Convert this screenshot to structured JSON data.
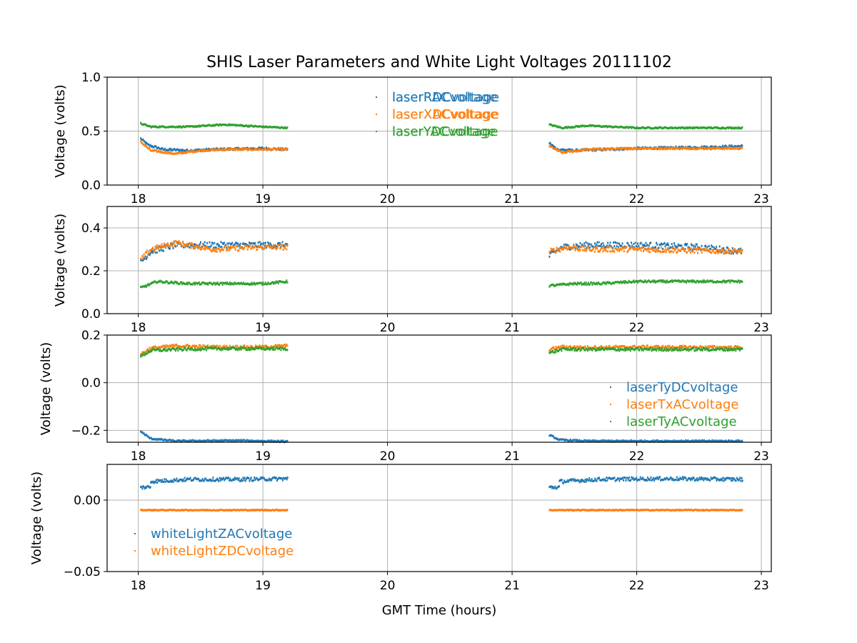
{
  "chart_data": {
    "title": "SHIS Laser Parameters and White Light Voltages 20111102",
    "xlabel": "GMT Time (hours)",
    "xlim": [
      17.75,
      23.08
    ],
    "xticks": [
      18,
      19,
      20,
      21,
      22,
      23
    ],
    "xtick_labels": [
      "18",
      "19",
      "20",
      "21",
      "22",
      "23"
    ],
    "data_segments": [
      [
        18.02,
        19.2
      ],
      [
        21.3,
        22.85
      ]
    ],
    "colors": {
      "blue": "#1f77b4",
      "orange": "#ff7f0e",
      "green": "#2ca02c"
    },
    "panels": [
      {
        "type": "scatter",
        "ylabel": "Voltage (volts)",
        "ylim": [
          0.0,
          1.0
        ],
        "yticks": [
          0.0,
          0.5,
          1.0
        ],
        "ytick_labels": [
          "0.0",
          "0.5",
          "1.0"
        ],
        "legend_position": "upper-center",
        "series": [
          {
            "name": "laserRDCvoltage",
            "color": "#1f77b4",
            "noise": 0.01,
            "segments": [
              [
                [
                  18.02,
                  0.43
                ],
                [
                  18.08,
                  0.37
                ],
                [
                  18.2,
                  0.33
                ],
                [
                  18.4,
                  0.32
                ],
                [
                  18.6,
                  0.33
                ],
                [
                  19.0,
                  0.34
                ],
                [
                  19.2,
                  0.33
                ]
              ],
              [
                [
                  21.3,
                  0.39
                ],
                [
                  21.36,
                  0.33
                ],
                [
                  21.5,
                  0.32
                ],
                [
                  22.0,
                  0.34
                ],
                [
                  22.5,
                  0.35
                ],
                [
                  22.85,
                  0.36
                ]
              ]
            ]
          },
          {
            "name": "laserXDCvoltage",
            "color": "#ff7f0e",
            "noise": 0.008,
            "segments": [
              [
                [
                  18.02,
                  0.4
                ],
                [
                  18.1,
                  0.32
                ],
                [
                  18.3,
                  0.29
                ],
                [
                  18.5,
                  0.32
                ],
                [
                  18.7,
                  0.33
                ],
                [
                  19.2,
                  0.33
                ]
              ],
              [
                [
                  21.3,
                  0.36
                ],
                [
                  21.4,
                  0.3
                ],
                [
                  21.6,
                  0.33
                ],
                [
                  22.0,
                  0.34
                ],
                [
                  22.85,
                  0.34
                ]
              ]
            ]
          },
          {
            "name": "laserYDCvoltage",
            "color": "#2ca02c",
            "noise": 0.006,
            "segments": [
              [
                [
                  18.02,
                  0.57
                ],
                [
                  18.1,
                  0.54
                ],
                [
                  18.4,
                  0.54
                ],
                [
                  18.7,
                  0.56
                ],
                [
                  19.0,
                  0.54
                ],
                [
                  19.2,
                  0.53
                ]
              ],
              [
                [
                  21.3,
                  0.56
                ],
                [
                  21.4,
                  0.53
                ],
                [
                  21.6,
                  0.55
                ],
                [
                  22.0,
                  0.53
                ],
                [
                  22.85,
                  0.53
                ]
              ]
            ]
          }
        ]
      },
      {
        "type": "scatter",
        "ylabel": "Voltage (volts)",
        "ylim": [
          0.0,
          0.5
        ],
        "yticks": [
          0.0,
          0.2,
          0.4
        ],
        "ytick_labels": [
          "0.0",
          "0.2",
          "0.4"
        ],
        "legend_position": "upper-center",
        "series": [
          {
            "name": "laserRACvoltage",
            "color": "#1f77b4",
            "noise": 0.014,
            "segments": [
              [
                [
                  18.02,
                  0.24
                ],
                [
                  18.1,
                  0.29
                ],
                [
                  18.3,
                  0.32
                ],
                [
                  18.6,
                  0.32
                ],
                [
                  19.0,
                  0.32
                ],
                [
                  19.2,
                  0.32
                ]
              ],
              [
                [
                  21.3,
                  0.27
                ],
                [
                  21.4,
                  0.31
                ],
                [
                  21.6,
                  0.32
                ],
                [
                  22.0,
                  0.32
                ],
                [
                  22.5,
                  0.31
                ],
                [
                  22.85,
                  0.29
                ]
              ]
            ]
          },
          {
            "name": "laserXACvoltage",
            "color": "#ff7f0e",
            "noise": 0.012,
            "segments": [
              [
                [
                  18.02,
                  0.25
                ],
                [
                  18.1,
                  0.3
                ],
                [
                  18.3,
                  0.33
                ],
                [
                  18.6,
                  0.3
                ],
                [
                  19.0,
                  0.31
                ],
                [
                  19.2,
                  0.31
                ]
              ],
              [
                [
                  21.3,
                  0.29
                ],
                [
                  21.45,
                  0.31
                ],
                [
                  21.6,
                  0.3
                ],
                [
                  22.0,
                  0.3
                ],
                [
                  22.85,
                  0.29
                ]
              ]
            ]
          },
          {
            "name": "laserYACvoltage",
            "color": "#2ca02c",
            "noise": 0.005,
            "segments": [
              [
                [
                  18.02,
                  0.12
                ],
                [
                  18.15,
                  0.15
                ],
                [
                  18.4,
                  0.14
                ],
                [
                  18.7,
                  0.14
                ],
                [
                  19.0,
                  0.14
                ],
                [
                  19.2,
                  0.15
                ]
              ],
              [
                [
                  21.3,
                  0.13
                ],
                [
                  21.5,
                  0.14
                ],
                [
                  21.7,
                  0.14
                ],
                [
                  22.0,
                  0.15
                ],
                [
                  22.85,
                  0.15
                ]
              ]
            ]
          }
        ]
      },
      {
        "type": "scatter",
        "ylabel": "Voltage (volts)",
        "ylim": [
          -0.25,
          0.2
        ],
        "yticks": [
          -0.2,
          0.0,
          0.2
        ],
        "ytick_labels": [
          "−0.2",
          "0.0",
          "0.2"
        ],
        "legend_position": "center-right",
        "series": [
          {
            "name": "laserTyDCvoltage",
            "color": "#1f77b4",
            "noise": 0.003,
            "segments": [
              [
                [
                  18.02,
                  -0.205
                ],
                [
                  18.1,
                  -0.235
                ],
                [
                  18.3,
                  -0.245
                ],
                [
                  18.8,
                  -0.243
                ],
                [
                  19.2,
                  -0.247
                ]
              ],
              [
                [
                  21.3,
                  -0.22
                ],
                [
                  21.38,
                  -0.24
                ],
                [
                  21.6,
                  -0.245
                ],
                [
                  22.0,
                  -0.245
                ],
                [
                  22.85,
                  -0.245
                ]
              ]
            ]
          },
          {
            "name": "laserTxACvoltage",
            "color": "#ff7f0e",
            "noise": 0.006,
            "segments": [
              [
                [
                  18.02,
                  0.12
                ],
                [
                  18.1,
                  0.145
                ],
                [
                  18.3,
                  0.155
                ],
                [
                  18.6,
                  0.15
                ],
                [
                  19.0,
                  0.15
                ],
                [
                  19.2,
                  0.155
                ]
              ],
              [
                [
                  21.3,
                  0.14
                ],
                [
                  21.4,
                  0.15
                ],
                [
                  21.6,
                  0.148
                ],
                [
                  22.0,
                  0.15
                ],
                [
                  22.85,
                  0.148
                ]
              ]
            ]
          },
          {
            "name": "laserTyACvoltage",
            "color": "#2ca02c",
            "noise": 0.006,
            "segments": [
              [
                [
                  18.02,
                  0.11
                ],
                [
                  18.1,
                  0.135
                ],
                [
                  18.3,
                  0.14
                ],
                [
                  18.6,
                  0.143
                ],
                [
                  19.0,
                  0.143
                ],
                [
                  19.2,
                  0.143
                ]
              ],
              [
                [
                  21.3,
                  0.125
                ],
                [
                  21.4,
                  0.14
                ],
                [
                  21.6,
                  0.14
                ],
                [
                  22.0,
                  0.14
                ],
                [
                  22.85,
                  0.14
                ]
              ]
            ]
          }
        ]
      },
      {
        "type": "scatter",
        "ylabel": "Voltage (volts)",
        "ylim": [
          -0.05,
          0.025
        ],
        "yticks": [
          -0.05,
          0.0
        ],
        "ytick_labels": [
          "−0.05",
          "0.00"
        ],
        "legend_position": "lower-left",
        "series": [
          {
            "name": "whiteLightZACvoltage",
            "color": "#1f77b4",
            "noise": 0.0012,
            "segments": [
              [
                [
                  18.02,
                  0.009
                ],
                [
                  18.1,
                  0.009
                ]
              ],
              [
                [
                  18.1,
                  0.013
                ],
                [
                  18.4,
                  0.0145
                ],
                [
                  18.8,
                  0.0145
                ],
                [
                  19.2,
                  0.015
                ]
              ],
              [
                [
                  21.3,
                  0.009
                ],
                [
                  21.38,
                  0.009
                ]
              ],
              [
                [
                  21.38,
                  0.013
                ],
                [
                  21.7,
                  0.0145
                ],
                [
                  22.2,
                  0.015
                ],
                [
                  22.85,
                  0.0145
                ]
              ]
            ]
          },
          {
            "name": "whiteLightZDCvoltage",
            "color": "#ff7f0e",
            "noise": 0.0003,
            "segments": [
              [
                [
                  18.02,
                  -0.007
                ],
                [
                  19.2,
                  -0.007
                ]
              ],
              [
                [
                  21.3,
                  -0.007
                ],
                [
                  22.85,
                  -0.007
                ]
              ]
            ]
          }
        ]
      }
    ]
  }
}
